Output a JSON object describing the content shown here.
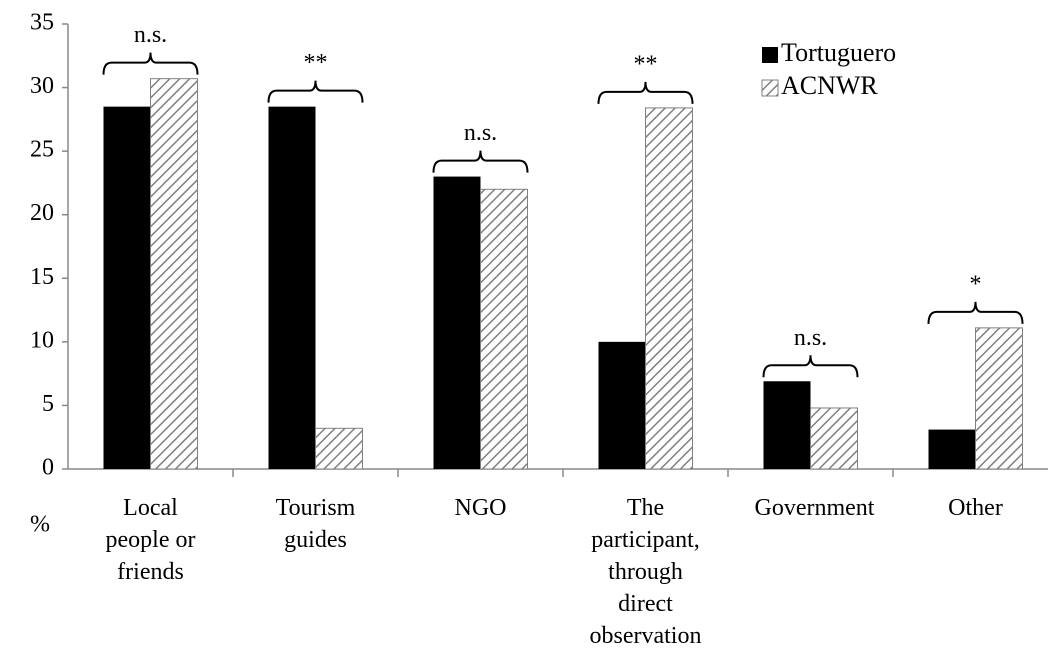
{
  "chart_data": {
    "type": "bar",
    "y_label": "%",
    "categories": [
      "Local people or friends",
      "Tourism guides",
      "NGO",
      "The participant, through direct observation",
      "Government",
      "Other"
    ],
    "series": [
      {
        "name": "Tortuguero",
        "color": "#000000",
        "hatch": false,
        "values": [
          28.5,
          28.5,
          23,
          10,
          6.9,
          3.1
        ]
      },
      {
        "name": "ACNWR",
        "color": "#808080",
        "hatch": true,
        "values": [
          30.7,
          3.2,
          22,
          28.4,
          4.8,
          11.1
        ]
      }
    ],
    "annotations": [
      "n.s.",
      "**",
      "n.s.",
      "**",
      "n.s.",
      "*"
    ],
    "ylim": [
      0,
      35
    ],
    "yticks": [
      0,
      5,
      10,
      15,
      20,
      25,
      30,
      35
    ],
    "grid": false,
    "legend": "top-right"
  }
}
